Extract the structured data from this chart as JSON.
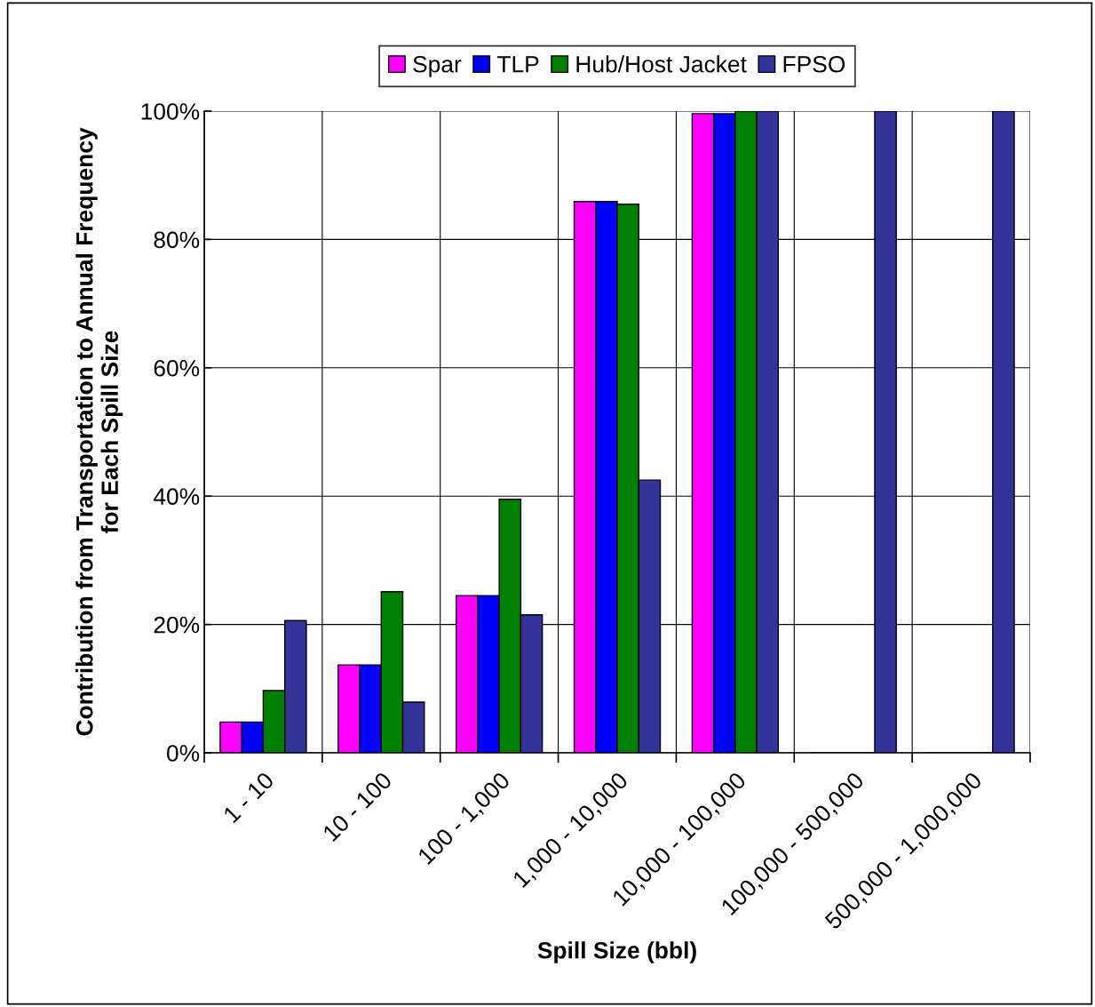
{
  "chart_data": {
    "type": "bar",
    "xlabel": "Spill Size (bbl)",
    "ylabel": "Contribution from Transportation to Annual Frequency\nfor Each Spill Size",
    "categories": [
      "1 - 10",
      "10 - 100",
      "100 - 1,000",
      "1,000 - 10,000",
      "10,000 - 100,000",
      "100,000 - 500,000",
      "500,000 - 1,000,000"
    ],
    "series": [
      {
        "name": "Spar",
        "color": "#ff00ff",
        "values": [
          4.8,
          13.7,
          24.5,
          85.9,
          99.6,
          0,
          0
        ]
      },
      {
        "name": "TLP",
        "color": "#0000ff",
        "values": [
          4.8,
          13.7,
          24.5,
          85.9,
          99.6,
          0,
          0
        ]
      },
      {
        "name": "Hub/Host Jacket",
        "color": "#008000",
        "values": [
          9.7,
          25.1,
          39.5,
          85.5,
          100,
          0,
          0
        ]
      },
      {
        "name": "FPSO",
        "color": "#333399",
        "values": [
          20.6,
          7.9,
          21.5,
          42.5,
          100,
          100,
          100
        ]
      }
    ],
    "ylim": [
      0,
      100
    ],
    "yticks": [
      {
        "value": 0,
        "label": "0%"
      },
      {
        "value": 20,
        "label": "20%"
      },
      {
        "value": 40,
        "label": "40%"
      },
      {
        "value": 60,
        "label": "60%"
      },
      {
        "value": 80,
        "label": "80%"
      },
      {
        "value": 100,
        "label": "100%"
      }
    ],
    "grid": true,
    "legend": "top"
  }
}
